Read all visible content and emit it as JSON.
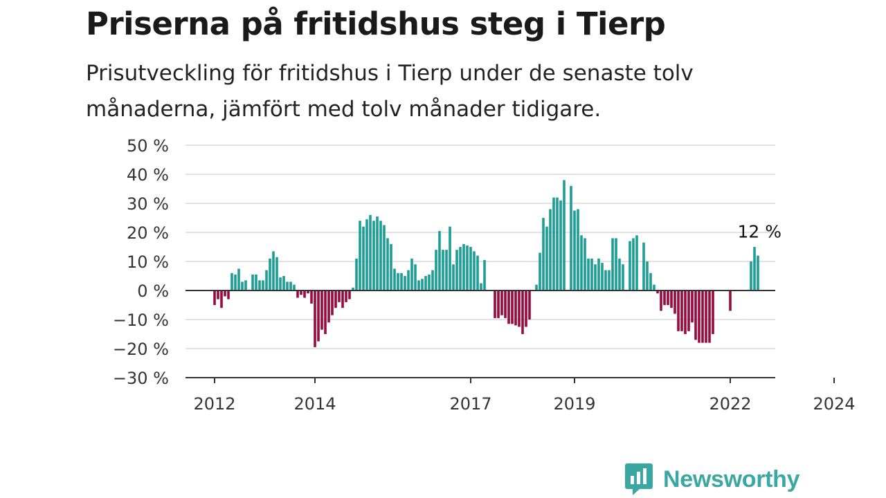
{
  "title": "Priserna på fritidshus steg i Tierp",
  "subtitle": "Prisutveckling för fritidshus i Tierp under de senaste tolv månaderna, jämfört med tolv månader tidigare.",
  "brand": {
    "name": "Newsworthy",
    "logo_icon": "bar-chart-speech-bubble-icon",
    "color": "#3aa8a0"
  },
  "chart_data": {
    "type": "bar",
    "y_unit": "%",
    "ylim": [
      -30,
      50
    ],
    "y_ticks": [
      50,
      40,
      30,
      20,
      10,
      0,
      -10,
      -20,
      -30
    ],
    "y_tick_labels": [
      "50 %",
      "40 %",
      "30 %",
      "20 %",
      "10 %",
      "0 %",
      "−10 %",
      "−20 %",
      "−30 %"
    ],
    "x_tick_labels": [
      {
        "label": "2012",
        "month": 0
      },
      {
        "label": "2014",
        "month": 29
      },
      {
        "label": "2017",
        "month": 74
      },
      {
        "label": "2019",
        "month": 104
      },
      {
        "label": "2022",
        "month": 149
      },
      {
        "label": "2024",
        "month": 179
      }
    ],
    "grid": true,
    "colors": {
      "positive": "#1a9e96",
      "negative": "#9b0a3d"
    },
    "values": [
      null,
      -5,
      -3,
      -6,
      -2,
      -3,
      6,
      5.5,
      7.5,
      3,
      3.5,
      null,
      5.5,
      5.5,
      3.5,
      3.5,
      7,
      11,
      13.5,
      11.5,
      4.5,
      5,
      3,
      3,
      2,
      -2.5,
      -1.5,
      -2.5,
      -1,
      -4.5,
      -19.5,
      -17.5,
      -13.5,
      -15,
      -11,
      -8.5,
      -6,
      -4,
      -6,
      -4,
      -3,
      1,
      11,
      24,
      22,
      24.5,
      26,
      24,
      25.5,
      24,
      22.5,
      18,
      16,
      7.5,
      6,
      6,
      5,
      7,
      11,
      9,
      3.5,
      4,
      5,
      5.5,
      7,
      14,
      20.5,
      14,
      14,
      22,
      9,
      14,
      15,
      16,
      15.5,
      15,
      13.5,
      12,
      2.5,
      10.5,
      null,
      null,
      -9.5,
      -9.5,
      -8.5,
      -9.5,
      -11.5,
      -11.5,
      -12,
      -12.5,
      -15,
      -12.5,
      -10,
      null,
      2,
      13,
      25,
      22,
      28,
      32,
      32,
      31,
      38,
      null,
      36,
      27.5,
      28,
      19,
      18,
      11,
      11,
      9,
      11,
      9.5,
      7,
      7,
      18,
      18,
      11,
      9,
      null,
      17,
      18,
      19,
      null,
      16.5,
      10,
      6,
      2,
      -1,
      -7,
      -5,
      -5,
      -6,
      -8,
      -14,
      -14,
      -15,
      -14,
      -11,
      -17,
      -18,
      -18,
      -18,
      -18,
      -15,
      null,
      null,
      null,
      null,
      -7,
      null,
      null,
      null,
      null,
      null,
      10,
      15,
      12
    ],
    "annotations": [
      {
        "label": "12 %",
        "value": 12
      }
    ]
  }
}
